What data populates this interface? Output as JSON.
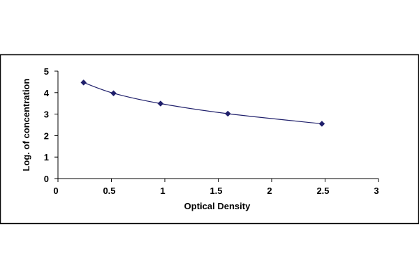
{
  "chart_data": {
    "type": "scatter",
    "xlabel": "Optical Density",
    "ylabel": "Log. of concentration",
    "xlim": [
      0,
      3
    ],
    "ylim": [
      0,
      5
    ],
    "x_ticks": [
      "0",
      "0.5",
      "1",
      "1.5",
      "2",
      "2.5",
      "3"
    ],
    "y_ticks": [
      "0",
      "1",
      "2",
      "3",
      "4",
      "5"
    ],
    "grid": false,
    "legend": "none",
    "fit": "smooth curve through points",
    "series": [
      {
        "color": "#1f1f6b",
        "marker": "diamond",
        "x": [
          0.24,
          0.52,
          0.96,
          1.59,
          2.47
        ],
        "y": [
          4.47,
          3.97,
          3.49,
          3.02,
          2.55
        ]
      }
    ]
  }
}
